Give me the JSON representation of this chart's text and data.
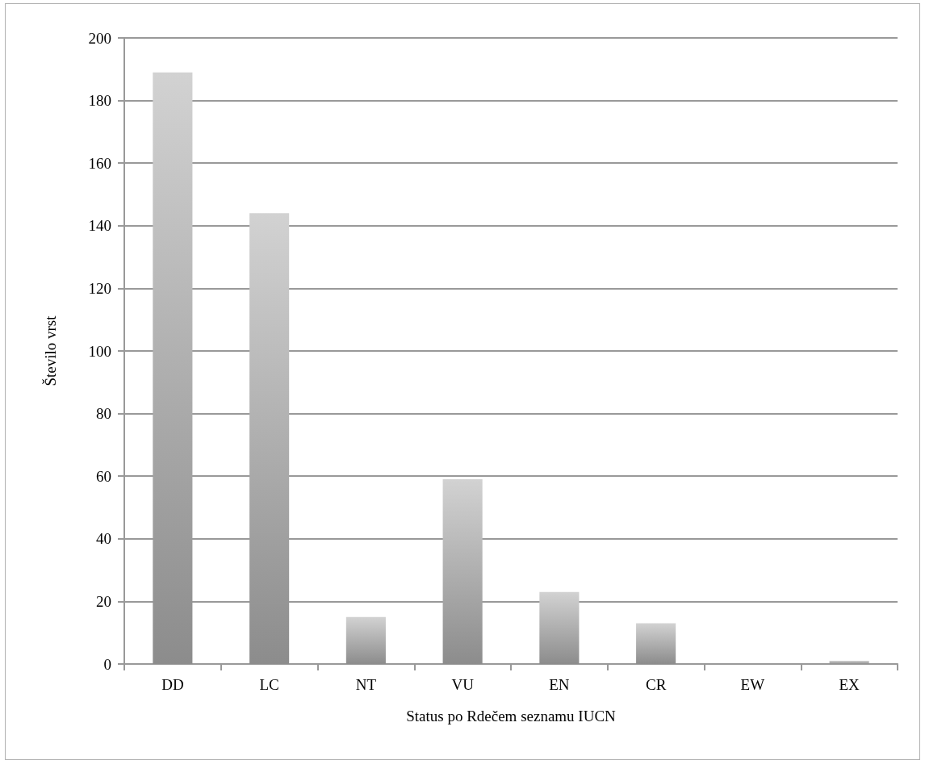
{
  "chart_data": {
    "type": "bar",
    "xlabel": "Status po Rdečem seznamu IUCN",
    "ylabel": "Število vrst",
    "categories": [
      "DD",
      "LC",
      "NT",
      "VU",
      "EN",
      "CR",
      "EW",
      "EX"
    ],
    "values": [
      189,
      144,
      15,
      59,
      23,
      13,
      0,
      1
    ],
    "color": "#8c8c8c",
    "ylim": [
      0,
      200
    ],
    "yticks": [
      0,
      20,
      40,
      60,
      80,
      100,
      120,
      140,
      160,
      180,
      200
    ],
    "grid": "y"
  }
}
